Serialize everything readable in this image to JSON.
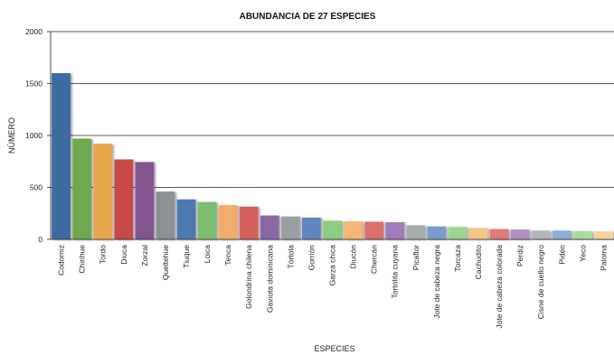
{
  "chart_data": {
    "type": "bar",
    "title": "ABUNDANCIA DE 27 ESPECIES",
    "xlabel": "ESPECIES",
    "ylabel": "NÚMERO",
    "ylim": [
      0,
      2000
    ],
    "yticks": [
      0,
      500,
      1000,
      1500,
      2000
    ],
    "grid": true,
    "categories": [
      "Codorniz",
      "Chirihue",
      "Tordo",
      "Diuca",
      "Zorzal",
      "Queltehue",
      "Tiuque",
      "Loica",
      "Tenca",
      "Golondrina chilena",
      "Gaviota dominicana",
      "Tórtola",
      "Gorrión",
      "Garza chica",
      "Diucón",
      "Chercán",
      "Tortolita cuyana",
      "Picaflor",
      "Jote de cabeza negra",
      "Torcaza",
      "Cachudito",
      "Jote de cabeza colorada",
      "Perdiz",
      "Cisne de cuello negro",
      "Pidén",
      "Yeco",
      "Paloma"
    ],
    "values": [
      1600,
      970,
      920,
      770,
      745,
      460,
      385,
      360,
      330,
      315,
      230,
      220,
      210,
      180,
      175,
      170,
      165,
      135,
      125,
      120,
      110,
      100,
      95,
      85,
      85,
      80,
      78
    ],
    "colors": [
      "#3e6aa1",
      "#6ea84f",
      "#e8a74d",
      "#c84a44",
      "#85558f",
      "#8b9194",
      "#4e79b1",
      "#7ebc72",
      "#f2ad6b",
      "#d4605c",
      "#8a67a6",
      "#9a9fa3",
      "#6185c0",
      "#8ccd81",
      "#f3b873",
      "#dc706d",
      "#a07cb8",
      "#a6abad",
      "#7b9bcc",
      "#9dd492",
      "#f5c486",
      "#e07c79",
      "#b08dc3",
      "#b3b7ba",
      "#8eaed8",
      "#aadb9f",
      "#f7d09a"
    ]
  }
}
